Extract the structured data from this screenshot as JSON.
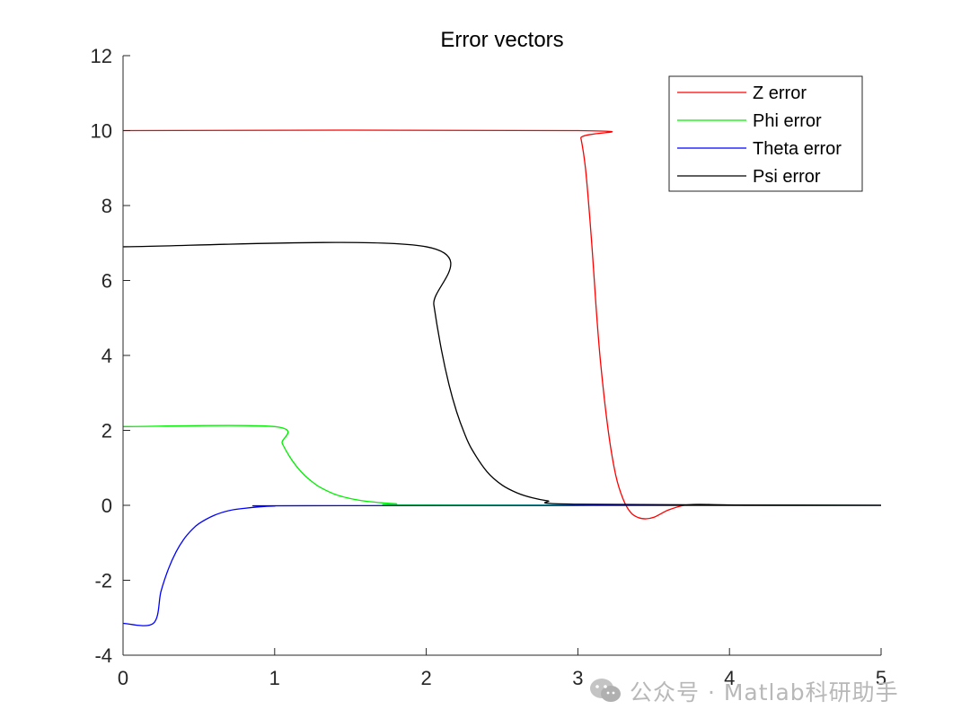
{
  "chart_data": {
    "type": "line",
    "title": "Error vectors",
    "xlabel": "",
    "ylabel": "",
    "xlim": [
      0,
      5
    ],
    "ylim": [
      -4,
      12
    ],
    "xticks": [
      0,
      1,
      2,
      3,
      4,
      5
    ],
    "yticks": [
      -4,
      -2,
      0,
      2,
      4,
      6,
      8,
      10,
      12
    ],
    "xtick_labels": [
      "0",
      "1",
      "2",
      "3",
      "4",
      "5"
    ],
    "ytick_labels": [
      "-4",
      "-2",
      "0",
      "2",
      "4",
      "6",
      "8",
      "10",
      "12"
    ],
    "grid": false,
    "legend_position": "top-right",
    "series": [
      {
        "name": "Z error",
        "color": "#ff0000",
        "x": [
          0,
          3.0,
          3.02,
          3.05,
          3.08,
          3.1,
          3.12,
          3.15,
          3.2,
          3.25,
          3.3,
          3.35,
          3.4,
          3.45,
          3.5,
          3.55,
          3.6,
          3.7,
          3.8,
          3.9,
          4.0,
          4.2,
          5.0
        ],
        "y": [
          10,
          10,
          9.8,
          9.0,
          7.6,
          6.5,
          5.3,
          3.8,
          2.0,
          0.8,
          0.15,
          -0.2,
          -0.33,
          -0.36,
          -0.32,
          -0.22,
          -0.12,
          0.0,
          0.03,
          0.02,
          0.01,
          0,
          0
        ]
      },
      {
        "name": "Phi error",
        "color": "#00ee00",
        "x": [
          0,
          1.0,
          1.05,
          1.1,
          1.15,
          1.2,
          1.25,
          1.3,
          1.4,
          1.5,
          1.6,
          1.7,
          1.8,
          2.0,
          5.0
        ],
        "y": [
          2.1,
          2.1,
          1.65,
          1.29,
          1.01,
          0.79,
          0.62,
          0.48,
          0.29,
          0.18,
          0.11,
          0.07,
          0.04,
          0.01,
          0
        ]
      },
      {
        "name": "Theta error",
        "color": "#0000ff",
        "x": [
          0,
          0.2,
          0.25,
          0.3,
          0.35,
          0.4,
          0.45,
          0.5,
          0.6,
          0.7,
          0.8,
          0.9,
          1.0,
          1.2,
          5.0
        ],
        "y": [
          -3.15,
          -3.15,
          -2.3,
          -1.69,
          -1.24,
          -0.91,
          -0.67,
          -0.49,
          -0.27,
          -0.14,
          -0.08,
          -0.04,
          -0.02,
          -0.01,
          0
        ]
      },
      {
        "name": "Psi error",
        "color": "#000000",
        "x": [
          0,
          2.0,
          2.05,
          2.1,
          2.15,
          2.2,
          2.25,
          2.3,
          2.4,
          2.5,
          2.6,
          2.7,
          2.8,
          3.0,
          5.0
        ],
        "y": [
          6.9,
          6.9,
          5.35,
          4.15,
          3.22,
          2.5,
          1.94,
          1.5,
          0.9,
          0.54,
          0.33,
          0.2,
          0.12,
          0.03,
          0
        ]
      }
    ]
  },
  "watermark": {
    "text": "公众号 · Matlab科研助手",
    "icon": "wechat-icon"
  }
}
